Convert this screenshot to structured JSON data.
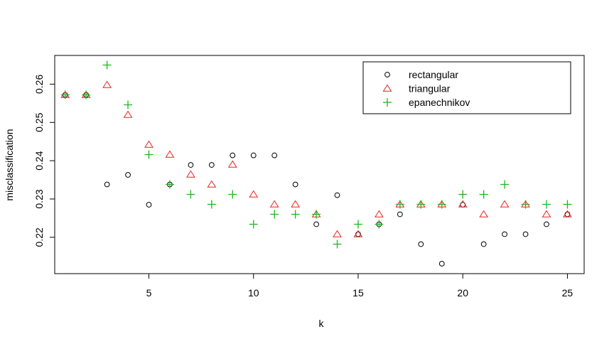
{
  "chart_data": {
    "type": "scatter",
    "title": "",
    "xlabel": "k",
    "ylabel": "misclassification",
    "xlim": [
      0.5,
      25.8
    ],
    "ylim": [
      0.2105,
      0.2675
    ],
    "xticks": [
      5,
      10,
      15,
      20,
      25
    ],
    "yticks": [
      0.22,
      0.23,
      0.24,
      0.25,
      0.26
    ],
    "legend_position": "top-right",
    "grid": false,
    "series": [
      {
        "name": "rectangular",
        "marker": "circle",
        "color": "#000000",
        "x": [
          1,
          2,
          3,
          4,
          5,
          6,
          7,
          8,
          9,
          10,
          11,
          12,
          13,
          14,
          15,
          16,
          17,
          18,
          19,
          20,
          21,
          22,
          23,
          24,
          25
        ],
        "y": [
          0.2572,
          0.2572,
          0.2338,
          0.2363,
          0.2285,
          0.2338,
          0.2389,
          0.2389,
          0.2414,
          0.2414,
          0.2414,
          0.2338,
          0.2234,
          0.231,
          0.2208,
          0.2234,
          0.226,
          0.2182,
          0.2131,
          0.2285,
          0.2182,
          0.2208,
          0.2208,
          0.2234,
          0.226
        ]
      },
      {
        "name": "triangular",
        "marker": "triangle",
        "color": "#e8231f",
        "x": [
          1,
          2,
          3,
          4,
          5,
          6,
          7,
          8,
          9,
          10,
          11,
          12,
          13,
          14,
          15,
          16,
          17,
          18,
          19,
          20,
          21,
          22,
          23,
          24,
          25
        ],
        "y": [
          0.2572,
          0.2572,
          0.2598,
          0.252,
          0.2442,
          0.2416,
          0.2364,
          0.2338,
          0.239,
          0.2312,
          0.2286,
          0.2286,
          0.226,
          0.2208,
          0.2208,
          0.226,
          0.2286,
          0.2286,
          0.2286,
          0.2286,
          0.226,
          0.2286,
          0.2286,
          0.226,
          0.226
        ]
      },
      {
        "name": "epanechnikov",
        "marker": "plus",
        "color": "#1fb51f",
        "x": [
          1,
          2,
          3,
          4,
          5,
          6,
          7,
          8,
          9,
          10,
          11,
          12,
          13,
          14,
          15,
          16,
          17,
          18,
          19,
          20,
          21,
          22,
          23,
          24,
          25
        ],
        "y": [
          0.2572,
          0.2572,
          0.265,
          0.2546,
          0.2416,
          0.2338,
          0.2312,
          0.2286,
          0.2312,
          0.2234,
          0.226,
          0.226,
          0.226,
          0.2182,
          0.2234,
          0.2234,
          0.2286,
          0.2286,
          0.2286,
          0.2312,
          0.2312,
          0.2338,
          0.2286,
          0.2286,
          0.2286
        ]
      }
    ]
  }
}
